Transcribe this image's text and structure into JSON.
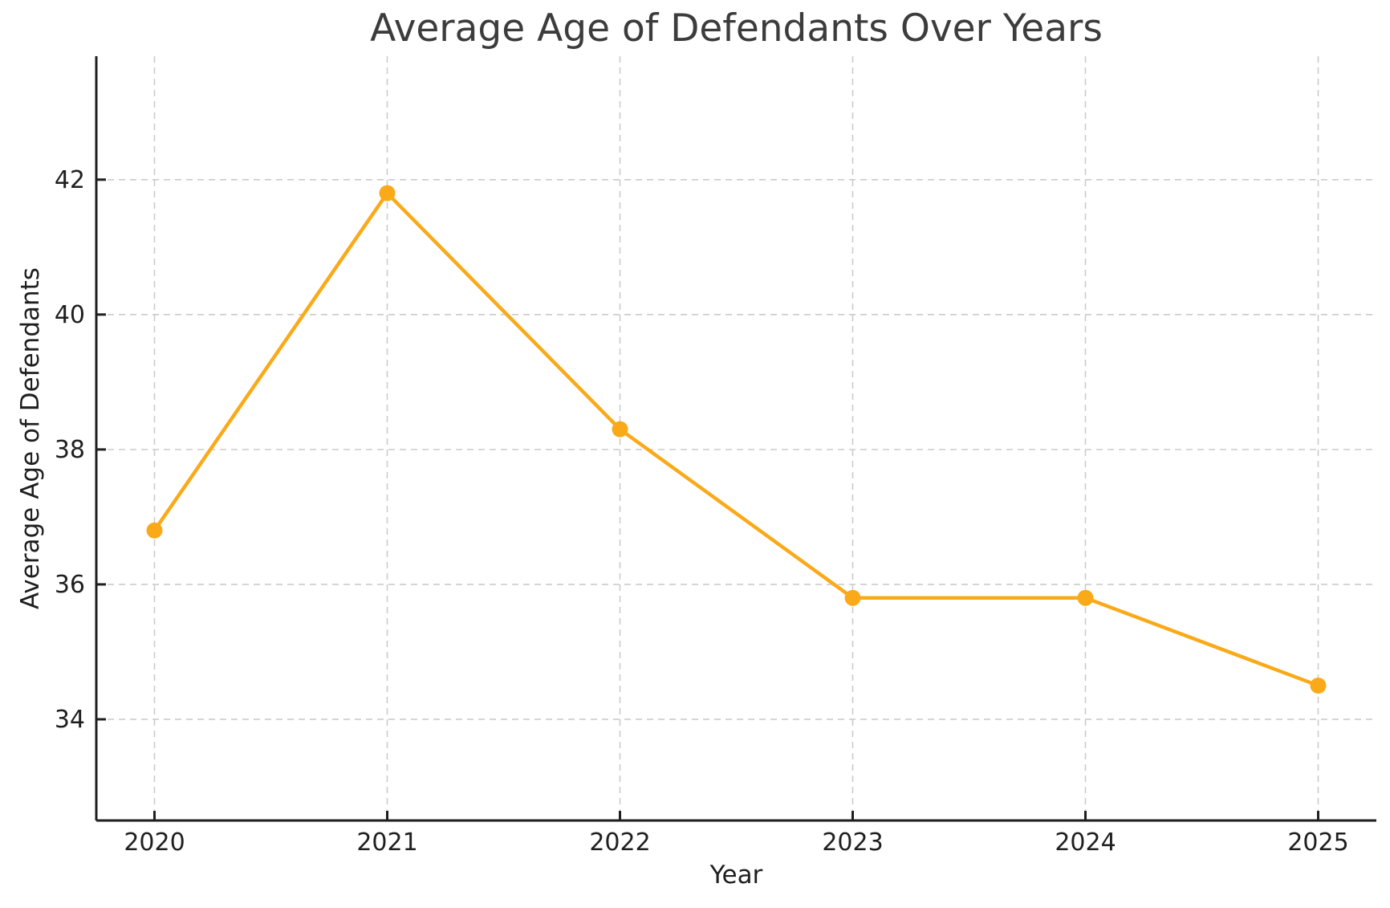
{
  "chart_data": {
    "type": "line",
    "title": "Average Age of Defendants Over Years",
    "xlabel": "Year",
    "ylabel": "Average Age of Defendants",
    "x": [
      2020,
      2021,
      2022,
      2023,
      2024,
      2025
    ],
    "x_tick_labels": [
      "2020",
      "2021",
      "2022",
      "2023",
      "2024",
      "2025"
    ],
    "y_ticks": [
      34,
      36,
      38,
      40,
      42
    ],
    "y_tick_labels": [
      "34",
      "36",
      "38",
      "40",
      "42"
    ],
    "series": [
      {
        "name": "Average Age of Defendants",
        "values": [
          36.8,
          41.8,
          38.3,
          35.8,
          35.8,
          34.5
        ]
      }
    ],
    "xlim": [
      2019.75,
      2025.25
    ],
    "ylim": [
      32.5,
      43.83
    ],
    "grid": true,
    "grid_style": "dashed",
    "legend": false,
    "marker": "circle",
    "colors": {
      "line": "#FAAA19",
      "marker": "#FAAA19",
      "grid": "#cbcbcb",
      "axis": "#1f1f1f",
      "tick_label": "#1f1f1f",
      "title": "#3c3c3c",
      "background": "#ffffff"
    }
  }
}
